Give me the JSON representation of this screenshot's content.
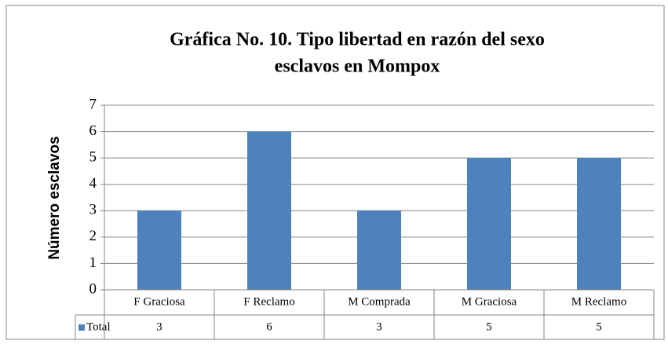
{
  "chart_data": {
    "type": "bar",
    "title": [
      "Gráfica No. 10. Tipo libertad en razón del sexo",
      "esclavos en Mompox"
    ],
    "y_label": "Número esclavos",
    "categories": [
      "F Graciosa",
      "F Reclamo",
      "M Comprada",
      "M Graciosa",
      "M Reclamo"
    ],
    "series": [
      {
        "name": "Total",
        "color": "#4f81bd",
        "values": [
          3,
          6,
          3,
          5,
          5
        ]
      }
    ],
    "ylim": [
      0,
      7
    ],
    "yticks": [
      0,
      1,
      2,
      3,
      4,
      5,
      6,
      7
    ],
    "grid": true,
    "data_table": true
  }
}
